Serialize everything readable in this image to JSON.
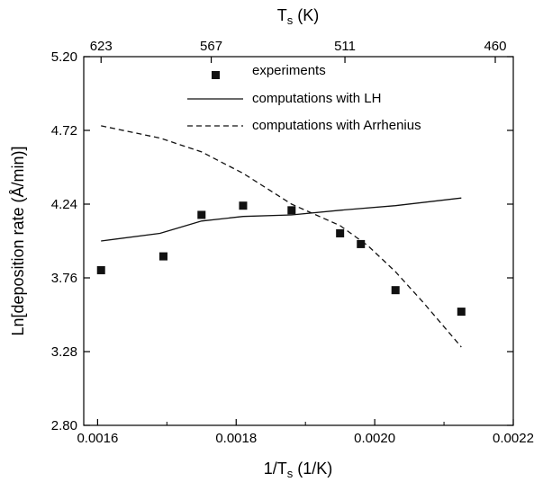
{
  "chart_data": {
    "type": "scatter",
    "title": "",
    "xlabel": "1/T",
    "xlabel_sub": "s",
    "xlabel_unit": " (1/K)",
    "ylabel": "Ln[deposition rate (Å/min)]",
    "top_xlabel": "T",
    "top_xlabel_sub": "s",
    "top_xlabel_unit": " (K)",
    "xlim": [
      0.00158,
      0.0022
    ],
    "ylim": [
      2.8,
      5.2
    ],
    "x_ticks": [
      0.0016,
      0.0018,
      0.002,
      0.0022
    ],
    "x_tick_labels": [
      "0.0016",
      "0.0018",
      "0.0020",
      "0.0022"
    ],
    "y_ticks": [
      2.8,
      3.28,
      3.76,
      4.24,
      4.72,
      5.2
    ],
    "y_tick_labels": [
      "2.80",
      "3.28",
      "3.76",
      "4.24",
      "4.72",
      "5.20"
    ],
    "top_ticks": [
      {
        "label": "623",
        "inv": 0.001605
      },
      {
        "label": "567",
        "inv": 0.001764
      },
      {
        "label": "511",
        "inv": 0.001957
      },
      {
        "label": "460",
        "inv": 0.002174
      }
    ],
    "legend_position": "top-right",
    "series": [
      {
        "name": "experiments",
        "kind": "markers",
        "color": "#111111",
        "x": [
          0.001605,
          0.001695,
          0.00175,
          0.00181,
          0.00188,
          0.00195,
          0.00198,
          0.00203,
          0.002125
        ],
        "y": [
          3.81,
          3.9,
          4.17,
          4.23,
          4.2,
          4.05,
          3.98,
          3.68,
          3.54
        ]
      },
      {
        "name": "computations with LH",
        "kind": "solid",
        "color": "#111111",
        "x": [
          0.001605,
          0.00169,
          0.00175,
          0.00181,
          0.00188,
          0.00195,
          0.00203,
          0.002125
        ],
        "y": [
          4.0,
          4.05,
          4.13,
          4.16,
          4.17,
          4.2,
          4.23,
          4.28
        ]
      },
      {
        "name": "computations with Arrhenius",
        "kind": "dashed",
        "color": "#111111",
        "x": [
          0.001605,
          0.00169,
          0.00175,
          0.00181,
          0.00188,
          0.00195,
          0.00199,
          0.00203,
          0.00207,
          0.002125
        ],
        "y": [
          4.75,
          4.67,
          4.58,
          4.44,
          4.24,
          4.1,
          3.97,
          3.8,
          3.6,
          3.31
        ]
      }
    ]
  }
}
